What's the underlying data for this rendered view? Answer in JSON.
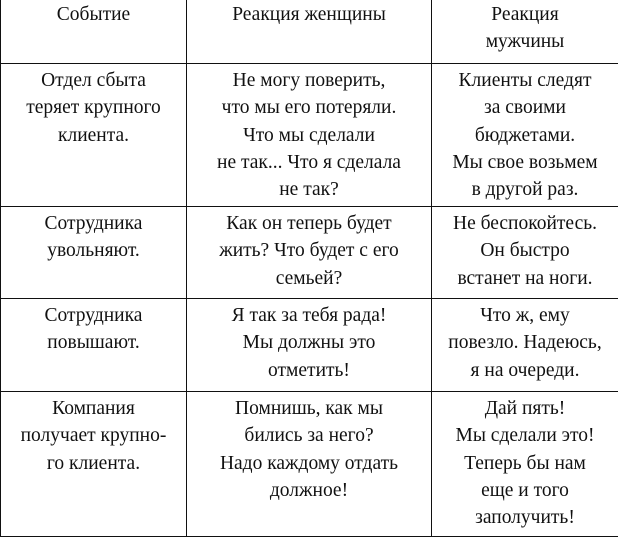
{
  "table": {
    "headers": [
      [
        "Событие"
      ],
      [
        "Реакция женщины"
      ],
      [
        "Реакция",
        "мужчины"
      ]
    ],
    "rows": [
      [
        [
          "Отдел сбыта",
          "теряет крупного",
          "клиента."
        ],
        [
          "Не могу поверить,",
          "что мы его потеряли.",
          "Что мы сделали",
          "не так... Что я сделала",
          "не так?"
        ],
        [
          "Клиенты следят",
          "за своими",
          "бюджетами.",
          "Мы свое возьмем",
          "в другой раз."
        ]
      ],
      [
        [
          "Сотрудника",
          "увольняют."
        ],
        [
          "Как он теперь будет",
          "жить? Что будет с его",
          "семьей?"
        ],
        [
          "Не беспокойтесь.",
          "Он быстро",
          "встанет на ноги."
        ]
      ],
      [
        [
          "Сотрудника",
          "повышают."
        ],
        [
          "Я так за тебя рада!",
          "Мы должны это",
          "отметить!"
        ],
        [
          "Что ж, ему",
          "повезло. Надеюсь,",
          "я на очереди."
        ]
      ],
      [
        [
          "Компания",
          "получает крупно-",
          "го клиента."
        ],
        [
          "Помнишь, как мы",
          "бились за него?",
          "Надо каждому отдать",
          "должное!"
        ],
        [
          "Дай пять!",
          "Мы сделали это!",
          "Теперь бы нам",
          "еще и того",
          "заполучить!"
        ]
      ]
    ]
  }
}
